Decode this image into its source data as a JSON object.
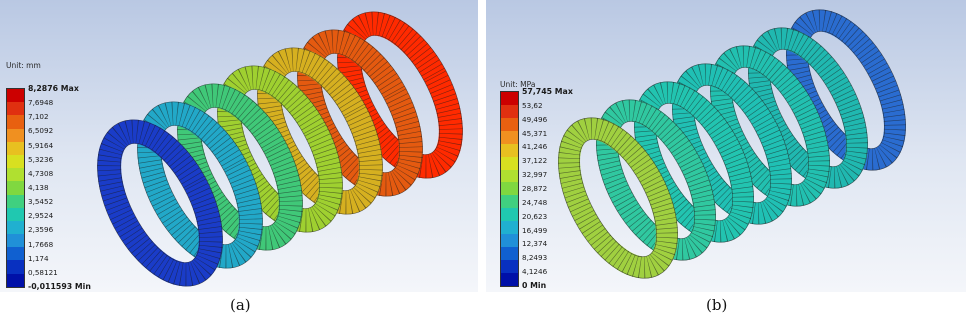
{
  "panel_a": {
    "unit": "Unit: mm",
    "caption": "(a)",
    "legend": [
      "8,2876 Max",
      "7,6948",
      "7,102",
      "6,5092",
      "5,9164",
      "5,3236",
      "4,7308",
      "4,138",
      "3,5452",
      "2,9524",
      "2,3596",
      "1,7668",
      "1,174",
      "0,58121",
      "-0,011593 Min"
    ],
    "colors": [
      "#cc0000",
      "#e03010",
      "#e86010",
      "#f09020",
      "#e8c020",
      "#d8e020",
      "#b0e030",
      "#80d840",
      "#40d080",
      "#20c8b0",
      "#20b0d0",
      "#2090d8",
      "#1060d0",
      "#0830c0",
      "#0010a8"
    ]
  },
  "panel_b": {
    "unit": "Unit: MPa",
    "caption": "(b)",
    "legend": [
      "57,745 Max",
      "53,62",
      "49,496",
      "45,371",
      "41,246",
      "37,122",
      "32,997",
      "28,872",
      "24,748",
      "20,623",
      "16,499",
      "12,374",
      "8,2493",
      "4,1246",
      "0 Min"
    ],
    "colors": [
      "#cc0000",
      "#e03010",
      "#e86010",
      "#f09020",
      "#e8c020",
      "#d8e020",
      "#b0e030",
      "#80d840",
      "#40d080",
      "#20c8b0",
      "#20b0d0",
      "#2090d8",
      "#1060d0",
      "#0830c0",
      "#0010a8"
    ]
  }
}
